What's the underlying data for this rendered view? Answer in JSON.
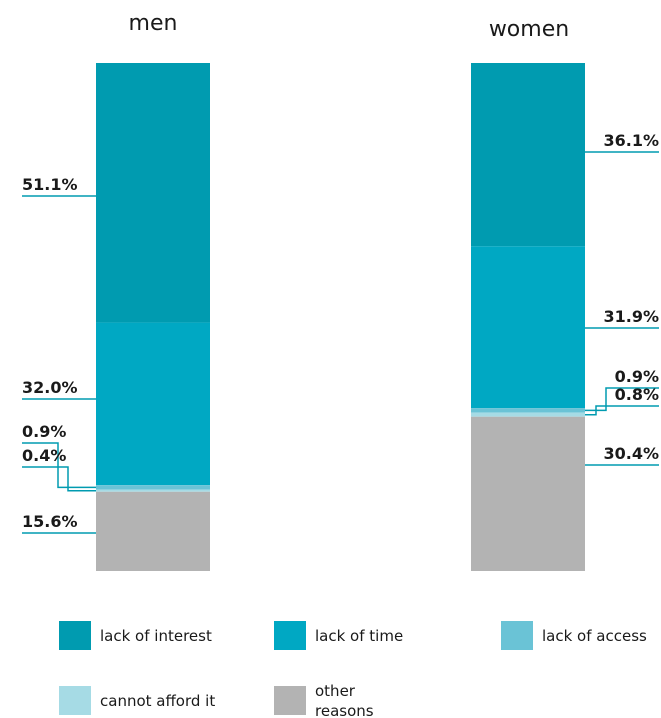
{
  "chart_data": {
    "type": "bar",
    "stacked": true,
    "normalized_percent": true,
    "categories": [
      "men",
      "women"
    ],
    "series": [
      {
        "name": "lack of interest",
        "values": [
          51.1,
          36.1
        ],
        "labels": [
          "51.1%",
          "36.1%"
        ],
        "color": "#009bb0"
      },
      {
        "name": "lack of time",
        "values": [
          32.0,
          31.9
        ],
        "labels": [
          "32.0%",
          "31.9%"
        ],
        "color": "#00a8c3"
      },
      {
        "name": "lack of access",
        "values": [
          0.9,
          0.9
        ],
        "labels": [
          "0.9%",
          "0.9%"
        ],
        "color": "#6ac3d6"
      },
      {
        "name": "cannot afford it",
        "values": [
          0.4,
          0.8
        ],
        "labels": [
          "0.4%",
          "0.8%"
        ],
        "color": "#a6dbe5"
      },
      {
        "name": "other\nreasons",
        "values": [
          15.6,
          30.4
        ],
        "labels": [
          "15.6%",
          "30.4%"
        ],
        "color": "#b3b3b3"
      }
    ],
    "legend_position": "bottom",
    "label_color": "#009bb0"
  }
}
